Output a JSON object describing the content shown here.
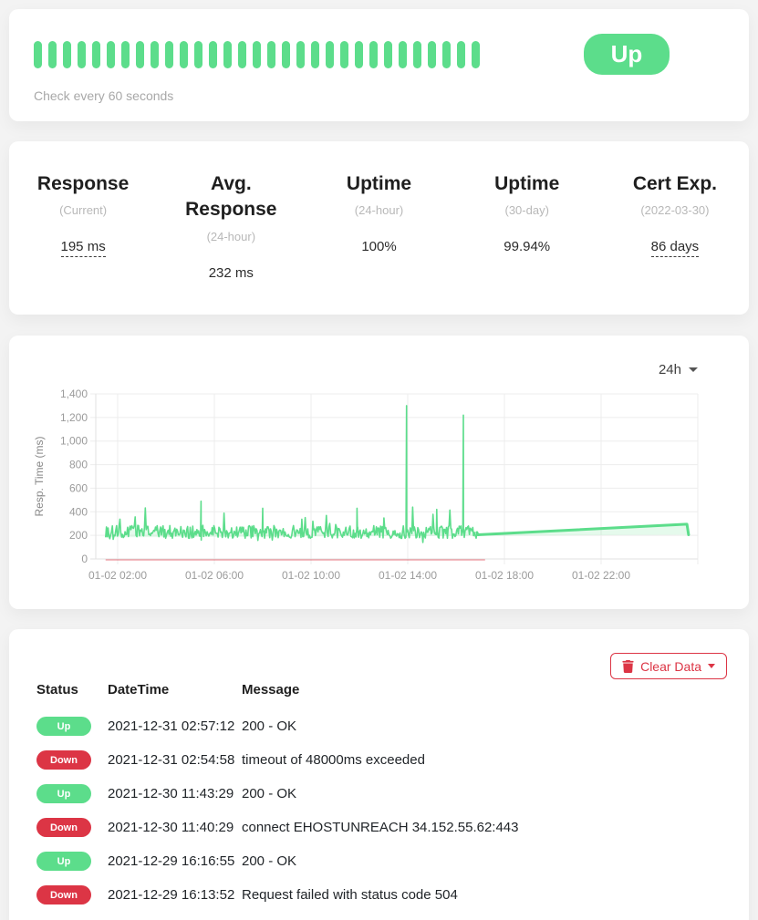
{
  "theme": {
    "green": "#5cdd8b",
    "red": "#dc3545",
    "page_bg": "#f3f3f3"
  },
  "monitor_card": {
    "status_badge": "Up",
    "check_text": "Check every 60 seconds",
    "beats": {
      "count": 31,
      "status": "up"
    }
  },
  "stats_card": {
    "items": [
      {
        "title": "Response",
        "subtitle": "(Current)",
        "value": "195 ms",
        "underline": true
      },
      {
        "title": "Avg. Response",
        "subtitle": "(24-hour)",
        "value": "232 ms",
        "underline": false
      },
      {
        "title": "Uptime",
        "subtitle": "(24-hour)",
        "value": "100%",
        "underline": false
      },
      {
        "title": "Uptime",
        "subtitle": "(30-day)",
        "value": "99.94%",
        "underline": false
      },
      {
        "title": "Cert Exp.",
        "subtitle": "(2022-03-30)",
        "value": "86 days",
        "underline": true
      }
    ]
  },
  "chart_card": {
    "period": "24h"
  },
  "chart_data": {
    "type": "line",
    "title": "",
    "xlabel": "",
    "ylabel": "Resp. Time (ms)",
    "ylim": [
      0,
      1400
    ],
    "y_ticks": [
      0,
      200,
      400,
      600,
      800,
      1000,
      1200,
      1400
    ],
    "x_unit": "hours since 2022-01-02 00:00",
    "x_ticks": [
      {
        "h": 2,
        "label": "01-02 02:00"
      },
      {
        "h": 6,
        "label": "01-02 06:00"
      },
      {
        "h": 10,
        "label": "01-02 10:00"
      },
      {
        "h": 14,
        "label": "01-02 14:00"
      },
      {
        "h": 18,
        "label": "01-02 18:00"
      },
      {
        "h": 22,
        "label": "01-02 22:00"
      },
      {
        "h": 26,
        "label": ""
      }
    ],
    "grid": true,
    "legend": "none",
    "series": [
      {
        "name": "response_time_noisy",
        "style": "noisy",
        "start_h": 1.5,
        "end_h": 16.9,
        "base_ms": 230,
        "noise_ms": 55,
        "spikes": [
          {
            "h": 5.45,
            "ms": 490
          },
          {
            "h": 8.0,
            "ms": 430
          },
          {
            "h": 11.9,
            "ms": 430
          },
          {
            "h": 13.95,
            "ms": 1300
          },
          {
            "h": 15.2,
            "ms": 420
          },
          {
            "h": 16.3,
            "ms": 1220
          }
        ]
      },
      {
        "name": "response_time_trend",
        "style": "smooth",
        "points": [
          {
            "h": 16.9,
            "ms": 205
          },
          {
            "h": 25.55,
            "ms": 295
          },
          {
            "h": 25.62,
            "ms": 205
          }
        ]
      }
    ],
    "down_marker": {
      "start_h": 1.5,
      "end_h": 17.2,
      "ms": 0
    },
    "colors": {
      "line": "#5cdd8b",
      "fill": "rgba(92,221,139,0.16)",
      "down": "rgba(220,53,69,0.45)",
      "grid": "#ededed",
      "axis": "#e2e2e2",
      "tick_text": "#9b9b9b",
      "axis_title_text": "#888888"
    }
  },
  "events_card": {
    "clear_button": {
      "label": "Clear Data"
    },
    "columns": [
      "Status",
      "DateTime",
      "Message"
    ],
    "rows": [
      {
        "status": "Up",
        "datetime": "2021-12-31 02:57:12",
        "message": "200 - OK"
      },
      {
        "status": "Down",
        "datetime": "2021-12-31 02:54:58",
        "message": "timeout of 48000ms exceeded"
      },
      {
        "status": "Up",
        "datetime": "2021-12-30 11:43:29",
        "message": "200 - OK"
      },
      {
        "status": "Down",
        "datetime": "2021-12-30 11:40:29",
        "message": "connect EHOSTUNREACH 34.152.55.62:443"
      },
      {
        "status": "Up",
        "datetime": "2021-12-29 16:16:55",
        "message": "200 - OK"
      },
      {
        "status": "Down",
        "datetime": "2021-12-29 16:13:52",
        "message": "Request failed with status code 504"
      }
    ]
  }
}
